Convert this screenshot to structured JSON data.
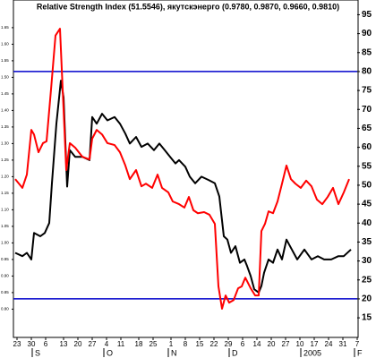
{
  "chart_data": {
    "type": "line",
    "title": "Relative Strength Index (51.5546), якутскэнерго (0.9780, 0.9870, 0.9660, 0.9810)",
    "xlim": [
      0,
      96
    ],
    "xticks": [
      {
        "value": 1,
        "label": "23"
      },
      {
        "value": 5,
        "label": "30"
      },
      {
        "value": 9,
        "label": "6"
      },
      {
        "value": 14,
        "label": "13"
      },
      {
        "value": 18,
        "label": "20"
      },
      {
        "value": 22,
        "label": "27"
      },
      {
        "value": 26,
        "label": "4"
      },
      {
        "value": 30,
        "label": "11"
      },
      {
        "value": 35,
        "label": "18"
      },
      {
        "value": 39,
        "label": "25"
      },
      {
        "value": 44,
        "label": "1"
      },
      {
        "value": 48,
        "label": "8"
      },
      {
        "value": 52,
        "label": "15"
      },
      {
        "value": 56,
        "label": "22"
      },
      {
        "value": 60,
        "label": "29"
      },
      {
        "value": 64,
        "label": "6"
      },
      {
        "value": 68,
        "label": "14"
      },
      {
        "value": 72,
        "label": "20"
      },
      {
        "value": 76,
        "label": "27"
      },
      {
        "value": 80,
        "label": "10"
      },
      {
        "value": 84,
        "label": "17"
      },
      {
        "value": 88,
        "label": "24"
      },
      {
        "value": 92,
        "label": "31"
      },
      {
        "value": 96,
        "label": "7"
      }
    ],
    "month_labels": [
      {
        "value": 6,
        "label": "S"
      },
      {
        "value": 26,
        "label": "O"
      },
      {
        "value": 44,
        "label": "N"
      },
      {
        "value": 61,
        "label": "D"
      },
      {
        "value": 81,
        "label": "2005"
      },
      {
        "value": 96,
        "label": "F"
      }
    ],
    "ylim": [
      0.72,
      1.72
    ],
    "yticks": [
      {
        "value": 0.8,
        "label": "0.80"
      },
      0.85,
      {
        "value": 0.9,
        "label": "0.90"
      },
      0.95,
      {
        "value": 1.0,
        "label": "1.00"
      },
      1.05,
      {
        "value": 1.1,
        "label": "1.10"
      },
      1.15,
      {
        "value": 1.2,
        "label": "1.20"
      },
      1.25,
      {
        "value": 1.3,
        "label": "1.30"
      },
      1.35,
      {
        "value": 1.4,
        "label": "1.40"
      },
      1.45,
      {
        "value": 1.5,
        "label": "1.50"
      },
      1.55,
      {
        "value": 1.6,
        "label": "1.60"
      },
      1.65
    ],
    "y2lim": [
      10.3,
      97.7
    ],
    "y2ticks": [
      15,
      20,
      25,
      30,
      35,
      40,
      45,
      50,
      55,
      60,
      65,
      70,
      75,
      80,
      85,
      90,
      95
    ],
    "levels": [
      {
        "value": 80,
        "color": "#0000cc"
      },
      {
        "value": 20,
        "color": "#0000cc"
      }
    ],
    "series": [
      {
        "color": "#000000",
        "x": [
          0.5,
          2.5,
          3.75,
          5,
          5.75,
          7.5,
          8.75,
          10,
          10.75,
          12,
          13.25,
          14,
          15,
          15.75,
          17.25,
          19.25,
          21.25,
          22,
          23.25,
          24.75,
          26.25,
          28.25,
          29.75,
          31.25,
          32.5,
          34.25,
          35.75,
          37.5,
          39.25,
          40.75,
          42.25,
          43.75,
          45.25,
          46.25,
          48,
          49.25,
          50.75,
          52.5,
          54.5,
          56.25,
          57.5,
          58.75,
          59.75,
          60.75,
          62,
          63.25,
          64.5,
          65.25,
          66.25,
          67.25,
          68.5,
          69.25,
          70,
          71.25,
          72.5,
          73.75,
          75,
          76.25,
          77.75,
          79.25,
          81.25,
          83.25,
          85,
          86.75,
          88.75,
          90.75,
          92.25,
          94.25
        ],
        "values": [
          0.97,
          0.96,
          0.97,
          0.95,
          1.03,
          1.02,
          1.03,
          1.06,
          1.18,
          1.36,
          1.49,
          1.44,
          1.17,
          1.28,
          1.26,
          1.26,
          1.25,
          1.38,
          1.36,
          1.39,
          1.37,
          1.38,
          1.36,
          1.33,
          1.3,
          1.32,
          1.29,
          1.3,
          1.28,
          1.3,
          1.28,
          1.26,
          1.24,
          1.25,
          1.23,
          1.2,
          1.18,
          1.2,
          1.19,
          1.18,
          1.14,
          1.02,
          1.01,
          0.97,
          0.99,
          0.94,
          0.95,
          0.93,
          0.9,
          0.86,
          0.85,
          0.87,
          0.91,
          0.95,
          0.94,
          0.98,
          0.95,
          1.01,
          0.98,
          0.95,
          0.98,
          0.95,
          0.96,
          0.95,
          0.95,
          0.96,
          0.96,
          0.98
        ]
      },
      {
        "color": "#ff0000",
        "axis": "y2",
        "x": [
          0.5,
          2.5,
          3.75,
          5,
          5.75,
          7,
          8.25,
          9.25,
          10.5,
          11.75,
          13,
          13.75,
          14.75,
          15.75,
          17.25,
          19.25,
          21.25,
          22,
          23.25,
          24.75,
          26.25,
          28.25,
          29.75,
          31.25,
          32.5,
          34.25,
          35.75,
          37,
          38.75,
          40.25,
          41.5,
          43.25,
          44.5,
          46.25,
          47.75,
          49,
          50.25,
          51.5,
          53.25,
          54.75,
          56.25,
          57.25,
          58.25,
          59.25,
          60.25,
          61.5,
          62.75,
          63.75,
          64.75,
          66.25,
          67.5,
          68.5,
          69.25,
          70.25,
          71.25,
          72.5,
          73.75,
          75,
          76.25,
          77.5,
          78.75,
          80.25,
          81.75,
          83.25,
          84.75,
          86.25,
          87.75,
          89.25,
          90.75,
          92.25,
          93.75
        ],
        "values": [
          51.6,
          49.3,
          52.8,
          64.6,
          63.4,
          58.7,
          61.1,
          61.6,
          75.3,
          89.5,
          91.3,
          75.3,
          54.0,
          61.1,
          59.9,
          57.5,
          56.8,
          62.3,
          64.6,
          63.4,
          61.1,
          60.6,
          58.7,
          55.2,
          51.6,
          54.0,
          49.7,
          50.4,
          49.3,
          52.8,
          49.3,
          48.1,
          45.7,
          45.0,
          44.1,
          46.9,
          43.4,
          42.6,
          42.9,
          42.2,
          39.8,
          23.3,
          17.4,
          20.9,
          19.0,
          19.7,
          22.8,
          23.3,
          25.6,
          22.8,
          20.9,
          20.9,
          37.9,
          39.8,
          43.1,
          42.6,
          45.7,
          50.4,
          55.2,
          51.6,
          50.4,
          49.3,
          51.2,
          49.7,
          46.2,
          45.0,
          46.9,
          49.3,
          45.0,
          48.1,
          51.6
        ]
      }
    ]
  }
}
